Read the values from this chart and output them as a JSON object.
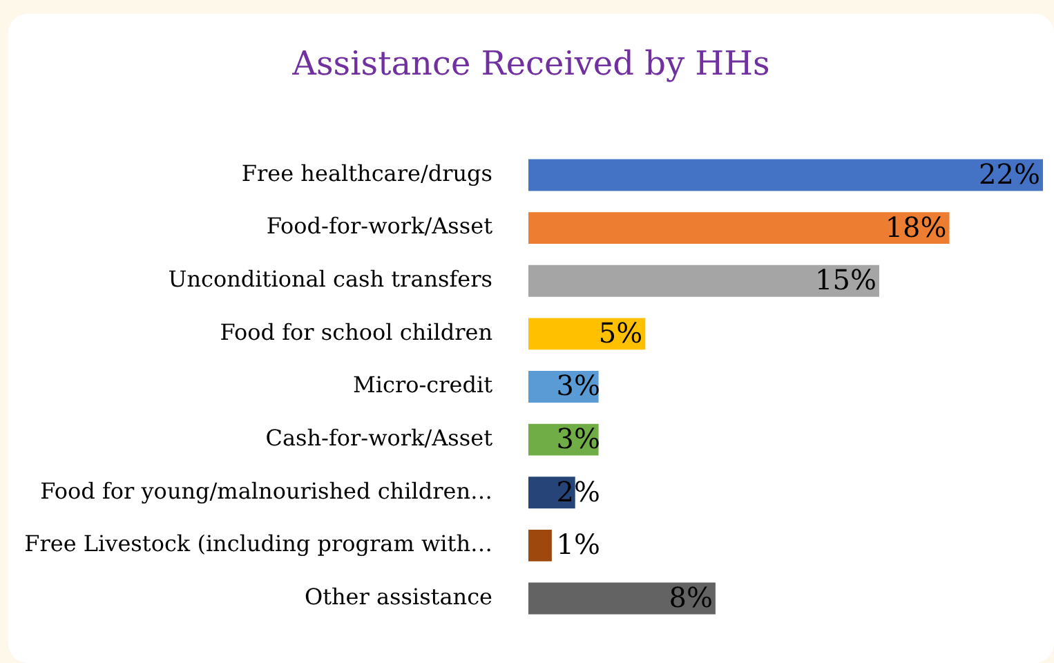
{
  "chart_data": {
    "type": "bar",
    "orientation": "horizontal",
    "title": "Assistance Received by HHs",
    "categories": [
      "Free healthcare/drugs",
      "Food-for-work/Asset",
      "Unconditional cash transfers",
      "Food for school children",
      "Micro-credit",
      "Cash-for-work/Asset",
      "Food for young/malnourished children…",
      "Free Livestock (including program with…",
      "Other assistance"
    ],
    "values": [
      22,
      18,
      15,
      5,
      3,
      3,
      2,
      1,
      8
    ],
    "colors": [
      "#4472c4",
      "#ed7d31",
      "#a5a5a5",
      "#ffc000",
      "#5b9bd5",
      "#70ad47",
      "#264478",
      "#9e480e",
      "#636363"
    ],
    "value_labels": [
      "22%",
      "18%",
      "15%",
      "5%",
      "3%",
      "3%",
      "2%",
      "1%",
      "8%"
    ],
    "legend": false,
    "tick_labels": "y"
  }
}
